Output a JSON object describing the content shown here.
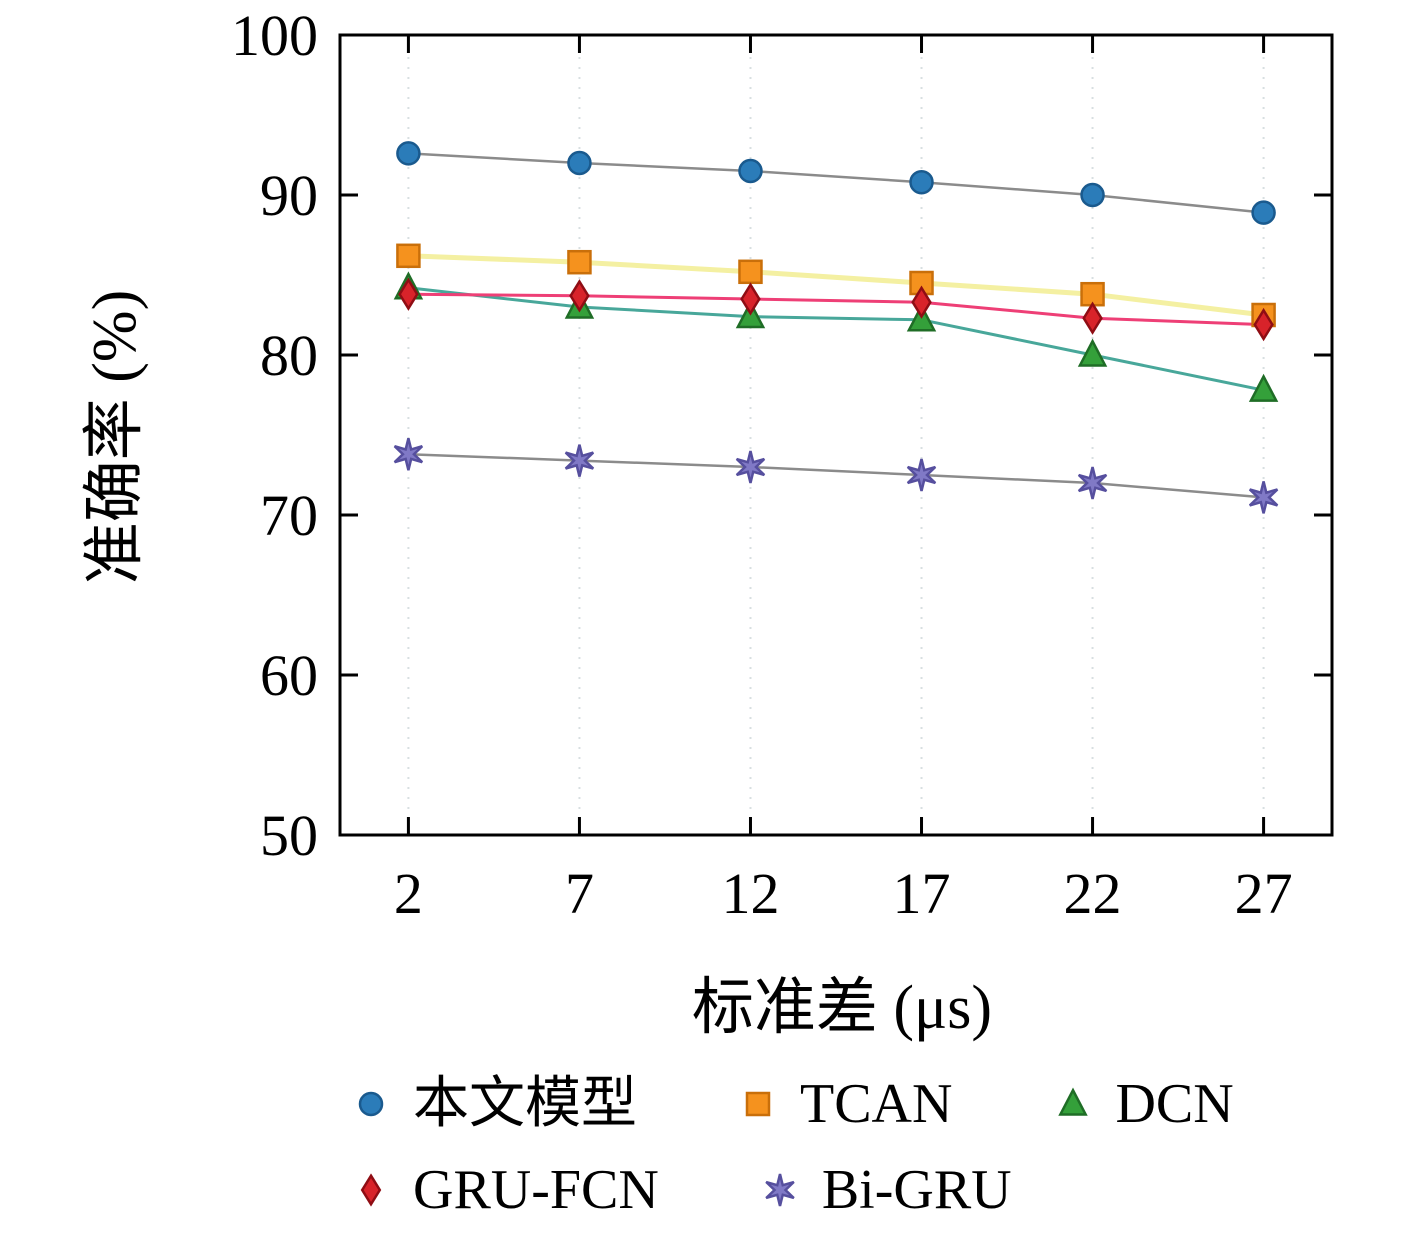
{
  "chart_data": {
    "type": "line",
    "title": "",
    "xlabel": "标准差 (μs)",
    "ylabel": "准确率 (%)",
    "xlim": [
      0,
      29
    ],
    "ylim": [
      50,
      100
    ],
    "grid": "vertical-dotted",
    "x": [
      2,
      7,
      12,
      17,
      22,
      27
    ],
    "ticks": {
      "x": [
        "2",
        "7",
        "12",
        "17",
        "22",
        "27"
      ],
      "y": [
        "50",
        "60",
        "70",
        "80",
        "90",
        "100"
      ],
      "y_values": [
        50,
        60,
        70,
        80,
        90,
        100
      ]
    },
    "series": [
      {
        "name": "本文模型",
        "marker": "circle",
        "color": "#2b7cb9",
        "marker_edge": "#1a5a8e",
        "line_color": "#8b8b8b",
        "line_width": 2.5,
        "values": [
          92.6,
          92.0,
          91.5,
          90.8,
          90.0,
          88.9
        ]
      },
      {
        "name": "TCAN",
        "marker": "square",
        "color": "#f5921e",
        "marker_edge": "#c96f0a",
        "line_color": "#f4f0a2",
        "line_width": 5,
        "values": [
          86.2,
          85.8,
          85.2,
          84.5,
          83.8,
          82.5
        ]
      },
      {
        "name": "DCN",
        "marker": "triangle",
        "color": "#34a03a",
        "marker_edge": "#1f6d26",
        "line_color": "#48a79a",
        "line_width": 3,
        "values": [
          84.2,
          83.0,
          82.4,
          82.2,
          80.0,
          77.8
        ]
      },
      {
        "name": "GRU-FCN",
        "marker": "diamond",
        "color": "#d8232a",
        "marker_edge": "#8f0d14",
        "line_color": "#ee3f76",
        "line_width": 3,
        "values": [
          83.8,
          83.7,
          83.5,
          83.3,
          82.3,
          81.9
        ]
      },
      {
        "name": "Bi-GRU",
        "marker": "star",
        "color": "#8079c6",
        "marker_edge": "#564f9e",
        "line_color": "#8b8b8b",
        "line_width": 2.5,
        "values": [
          73.8,
          73.4,
          73.0,
          72.5,
          72.0,
          71.1
        ]
      }
    ],
    "legend": {
      "position": "bottom",
      "rows": [
        [
          0,
          1,
          2
        ],
        [
          3,
          4
        ]
      ]
    }
  }
}
